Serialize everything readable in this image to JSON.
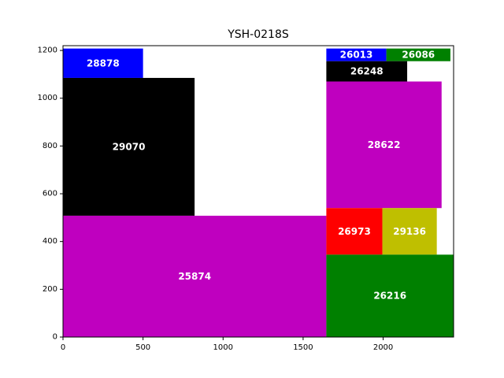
{
  "chart_data": {
    "type": "treemap",
    "title": "YSH-0218S",
    "xlabel": "",
    "ylabel": "",
    "xlim": [
      0,
      2440
    ],
    "ylim": [
      0,
      1220
    ],
    "xticks": [
      0,
      500,
      1000,
      1500,
      2000
    ],
    "yticks": [
      0,
      200,
      400,
      600,
      800,
      1000,
      1200
    ],
    "grid": false,
    "rects": [
      {
        "label": "28878",
        "x0": 0,
        "y0": 1085,
        "x1": 500,
        "y1": 1208,
        "color": "#0000ff"
      },
      {
        "label": "29070",
        "x0": 0,
        "y0": 508,
        "x1": 822,
        "y1": 1085,
        "color": "#000000"
      },
      {
        "label": "25874",
        "x0": 0,
        "y0": 0,
        "x1": 1645,
        "y1": 508,
        "color": "#bf00bf"
      },
      {
        "label": "26013",
        "x0": 1645,
        "y0": 1155,
        "x1": 2020,
        "y1": 1208,
        "color": "#0000ff"
      },
      {
        "label": "26086",
        "x0": 2020,
        "y0": 1155,
        "x1": 2420,
        "y1": 1208,
        "color": "#008000"
      },
      {
        "label": "26248",
        "x0": 1645,
        "y0": 1070,
        "x1": 2150,
        "y1": 1155,
        "color": "#000000"
      },
      {
        "label": "28622",
        "x0": 1645,
        "y0": 540,
        "x1": 2365,
        "y1": 1070,
        "color": "#bf00bf"
      },
      {
        "label": "26973",
        "x0": 1645,
        "y0": 345,
        "x1": 1995,
        "y1": 540,
        "color": "#ff0000"
      },
      {
        "label": "29136",
        "x0": 1995,
        "y0": 345,
        "x1": 2335,
        "y1": 540,
        "color": "#bfbf00"
      },
      {
        "label": "26216",
        "x0": 1645,
        "y0": 0,
        "x1": 2440,
        "y1": 345,
        "color": "#008000"
      }
    ]
  }
}
